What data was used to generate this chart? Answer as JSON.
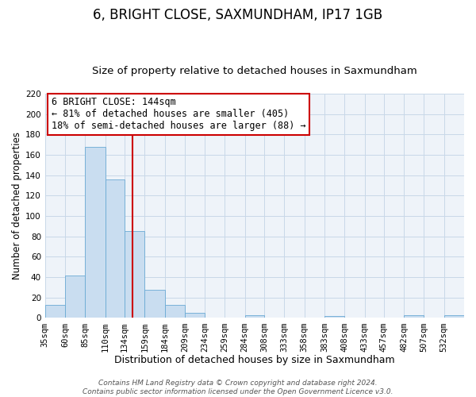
{
  "title": "6, BRIGHT CLOSE, SAXMUNDHAM, IP17 1GB",
  "subtitle": "Size of property relative to detached houses in Saxmundham",
  "xlabel": "Distribution of detached houses by size in Saxmundham",
  "ylabel": "Number of detached properties",
  "bin_labels": [
    "35sqm",
    "60sqm",
    "85sqm",
    "110sqm",
    "134sqm",
    "159sqm",
    "184sqm",
    "209sqm",
    "234sqm",
    "259sqm",
    "284sqm",
    "308sqm",
    "333sqm",
    "358sqm",
    "383sqm",
    "408sqm",
    "433sqm",
    "457sqm",
    "482sqm",
    "507sqm",
    "532sqm"
  ],
  "bin_edges": [
    35,
    60,
    85,
    110,
    134,
    159,
    184,
    209,
    234,
    259,
    284,
    308,
    333,
    358,
    383,
    408,
    433,
    457,
    482,
    507,
    532,
    557
  ],
  "bar_values": [
    13,
    42,
    168,
    136,
    85,
    28,
    13,
    5,
    0,
    0,
    3,
    0,
    0,
    0,
    2,
    0,
    0,
    0,
    3,
    0,
    3
  ],
  "bar_color": "#c9ddf0",
  "bar_edge_color": "#6aaad4",
  "grid_color": "#c8d8e8",
  "background_color": "#eef3f9",
  "vline_x": 144,
  "vline_color": "#cc0000",
  "annotation_line1": "6 BRIGHT CLOSE: 144sqm",
  "annotation_line2": "← 81% of detached houses are smaller (405)",
  "annotation_line3": "18% of semi-detached houses are larger (88) →",
  "annotation_box_edge_color": "#cc0000",
  "ylim": [
    0,
    220
  ],
  "yticks": [
    0,
    20,
    40,
    60,
    80,
    100,
    120,
    140,
    160,
    180,
    200,
    220
  ],
  "footer_line1": "Contains HM Land Registry data © Crown copyright and database right 2024.",
  "footer_line2": "Contains public sector information licensed under the Open Government Licence v3.0.",
  "title_fontsize": 12,
  "subtitle_fontsize": 9.5,
  "xlabel_fontsize": 9,
  "ylabel_fontsize": 8.5,
  "tick_fontsize": 7.5,
  "footer_fontsize": 6.5,
  "annotation_fontsize": 8.5
}
